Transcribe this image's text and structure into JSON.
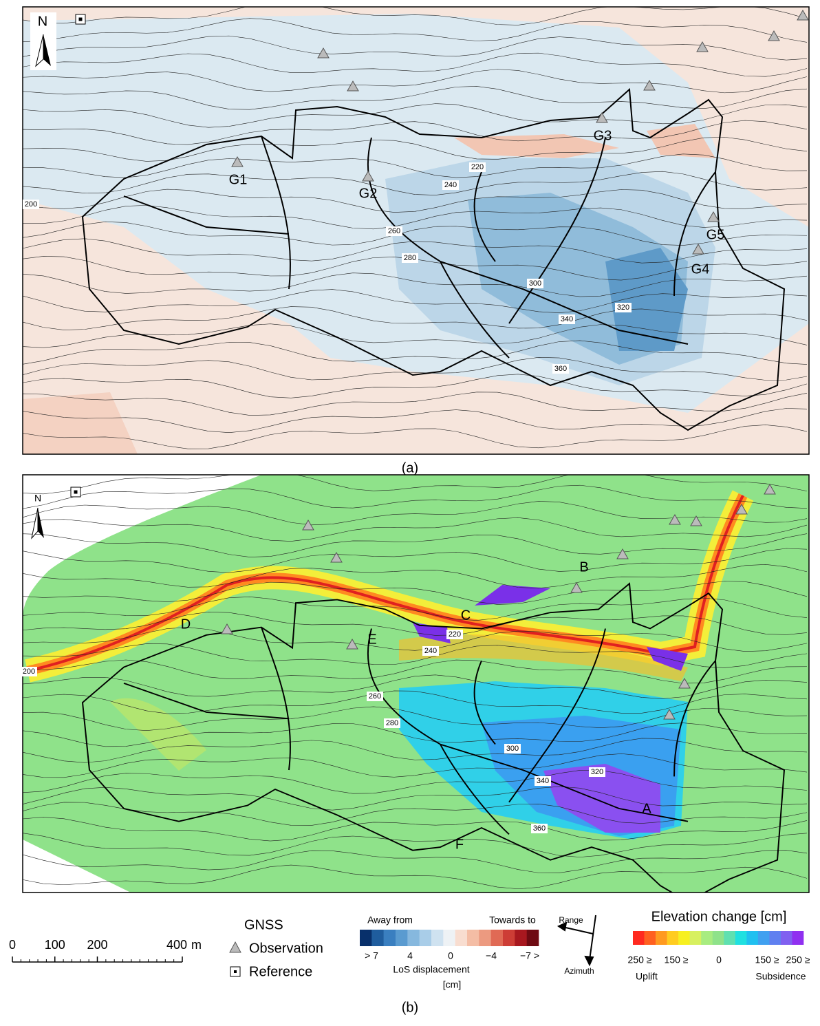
{
  "panel_a": {
    "label": "(a)",
    "north": "N",
    "stations": [
      "G1",
      "G2",
      "G3",
      "G4",
      "G5"
    ],
    "contour_labels": [
      200,
      220,
      240,
      260,
      280,
      300,
      320,
      340,
      360
    ]
  },
  "panel_b": {
    "label": "(b)",
    "north": "N",
    "sites": [
      "A",
      "B",
      "C",
      "D",
      "E",
      "F"
    ],
    "contour_labels": [
      200,
      220,
      240,
      260,
      280,
      300,
      320,
      340,
      360
    ]
  },
  "legend": {
    "scale": {
      "ticks": [
        0,
        100,
        200,
        400
      ],
      "unit": "m"
    },
    "gnss": {
      "title": "GNSS",
      "items": [
        "Observation",
        "Reference"
      ]
    },
    "los": {
      "left": "Away from",
      "right": "Towards to",
      "ticks": [
        "> 7",
        "4",
        "0",
        "−4",
        "−7 >"
      ],
      "title": "LoS displacement",
      "unit": "[cm]",
      "colors": [
        "#08306b",
        "#1f5d9e",
        "#3a7fc0",
        "#5a9bd0",
        "#86b8de",
        "#a9cde8",
        "#cfe2f0",
        "#eef2f5",
        "#f8ddd0",
        "#f4bda5",
        "#ec9a80",
        "#e06a55",
        "#cd3d36",
        "#a8181f",
        "#6e0a12"
      ]
    },
    "direction": {
      "range": "Range",
      "azimuth": "Azimuth"
    },
    "elevation": {
      "title": "Elevation change [cm]",
      "ticks": [
        "250 ≥",
        "150 ≥",
        "0",
        "150 ≥",
        "250 ≥"
      ],
      "left": "Uplift",
      "right": "Subsidence",
      "colors": [
        "#ff2a20",
        "#ff6020",
        "#ff9a20",
        "#ffcc20",
        "#f7f020",
        "#d7f060",
        "#a8ec80",
        "#8fe28a",
        "#60e0b0",
        "#20e0e0",
        "#20c0f0",
        "#40a0f0",
        "#6080f0",
        "#8060f0",
        "#9030f0"
      ]
    }
  }
}
